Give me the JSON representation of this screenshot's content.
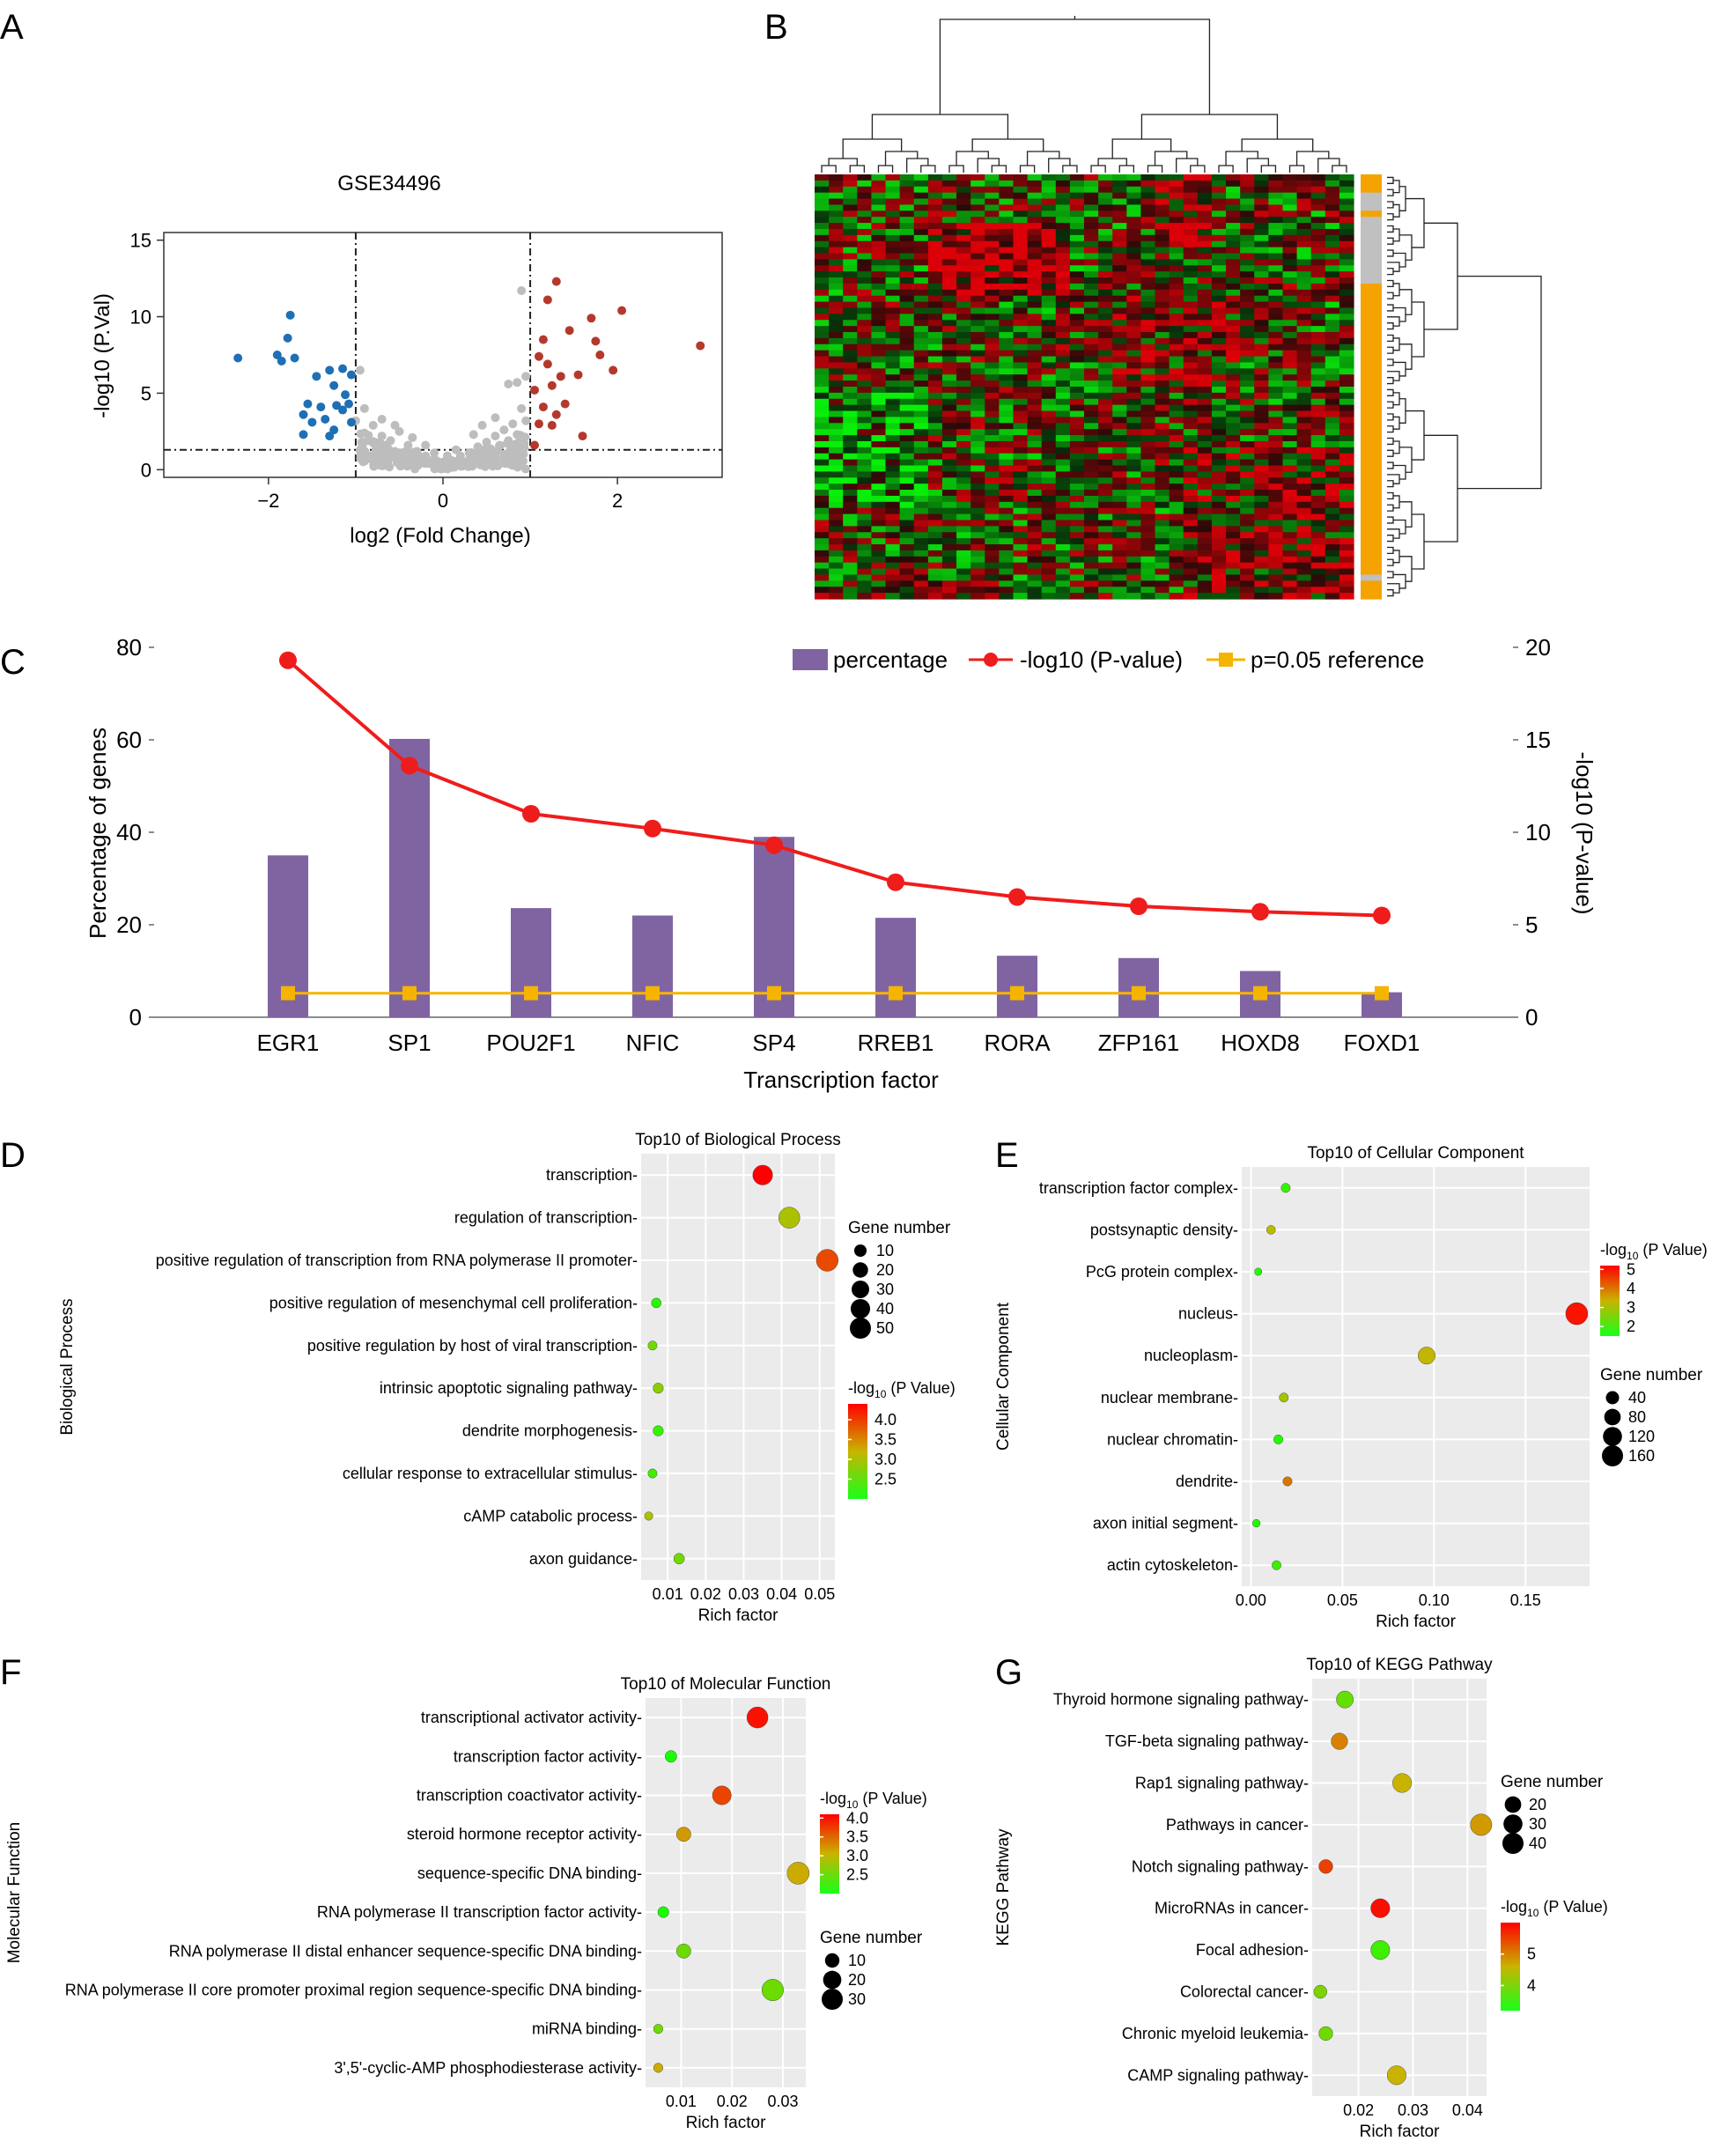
{
  "figure": {
    "panel_letters": [
      "A",
      "B",
      "C",
      "D",
      "E",
      "F",
      "G"
    ]
  },
  "colors": {
    "down": "#1f6fb4",
    "up": "#b4392c",
    "ns": "#bdbdbd",
    "bar": "#8064a2",
    "line": "#ef1c1c",
    "ref": "#f5b400",
    "grid_panel": "#ebebeb",
    "sample_bar_orange": "#f5a300",
    "sample_bar_gray": "#c0c0c0"
  },
  "chart_data": [
    {
      "panel": "A",
      "type": "scatter",
      "title": "GSE34496",
      "xlabel": "log2 (Fold Change)",
      "ylabel": "-log10 (P.Val)",
      "xlim": [
        -3.2,
        3.2
      ],
      "ylim": [
        -0.5,
        15.5
      ],
      "xticks": [
        -2,
        0,
        2
      ],
      "yticks": [
        0,
        5,
        10,
        15
      ],
      "vlines": [
        -1,
        1
      ],
      "hline": 1.3,
      "down": [
        [
          -2.35,
          7.3
        ],
        [
          -1.75,
          10.1
        ],
        [
          -1.78,
          8.6
        ],
        [
          -1.9,
          7.5
        ],
        [
          -1.85,
          7.1
        ],
        [
          -1.7,
          7.3
        ],
        [
          -1.45,
          6.1
        ],
        [
          -1.55,
          4.3
        ],
        [
          -1.4,
          4.1
        ],
        [
          -1.3,
          6.5
        ],
        [
          -1.25,
          5.5
        ],
        [
          -1.22,
          4.2
        ],
        [
          -1.6,
          3.6
        ],
        [
          -1.5,
          3.1
        ],
        [
          -1.35,
          3.3
        ],
        [
          -1.12,
          4.9
        ],
        [
          -1.08,
          4.3
        ],
        [
          -1.15,
          3.9
        ],
        [
          -1.05,
          3.1
        ],
        [
          -1.25,
          2.6
        ],
        [
          -1.3,
          2.2
        ],
        [
          -1.6,
          2.3
        ],
        [
          -1.15,
          6.6
        ],
        [
          -1.05,
          6.2
        ]
      ],
      "up": [
        [
          2.95,
          8.1
        ],
        [
          2.05,
          10.4
        ],
        [
          1.3,
          12.3
        ],
        [
          1.2,
          11.1
        ],
        [
          1.7,
          9.9
        ],
        [
          1.15,
          8.5
        ],
        [
          1.45,
          9.1
        ],
        [
          1.75,
          8.4
        ],
        [
          1.1,
          7.4
        ],
        [
          1.35,
          6.1
        ],
        [
          1.55,
          6.2
        ],
        [
          1.25,
          5.5
        ],
        [
          1.05,
          5.2
        ],
        [
          1.95,
          6.5
        ],
        [
          1.4,
          4.3
        ],
        [
          1.15,
          4.1
        ],
        [
          1.1,
          3.0
        ],
        [
          1.3,
          3.6
        ],
        [
          1.25,
          2.9
        ],
        [
          1.05,
          1.6
        ],
        [
          1.6,
          2.2
        ],
        [
          1.2,
          6.9
        ],
        [
          1.8,
          7.5
        ]
      ],
      "ns": [
        [
          -1.0,
          3.2
        ],
        [
          -0.9,
          2.4
        ],
        [
          -0.95,
          6.5
        ],
        [
          -0.85,
          1.9
        ],
        [
          -0.8,
          2.9
        ],
        [
          -0.75,
          1.6
        ],
        [
          -0.7,
          2.2
        ],
        [
          -0.65,
          1.4
        ],
        [
          -0.6,
          1.9
        ],
        [
          -0.55,
          1.2
        ],
        [
          -0.5,
          2.5
        ],
        [
          -0.45,
          1.0
        ],
        [
          -0.4,
          1.6
        ],
        [
          -0.35,
          0.8
        ],
        [
          -0.3,
          1.2
        ],
        [
          -0.25,
          0.6
        ],
        [
          -0.2,
          0.9
        ],
        [
          -0.15,
          0.4
        ],
        [
          -0.1,
          0.7
        ],
        [
          -0.05,
          0.3
        ],
        [
          0.0,
          0.5
        ],
        [
          0.05,
          0.2
        ],
        [
          0.1,
          0.6
        ],
        [
          0.15,
          0.3
        ],
        [
          0.2,
          0.9
        ],
        [
          0.25,
          0.5
        ],
        [
          0.3,
          1.1
        ],
        [
          0.35,
          0.7
        ],
        [
          0.4,
          1.5
        ],
        [
          0.45,
          0.9
        ],
        [
          0.5,
          1.8
        ],
        [
          0.55,
          1.2
        ],
        [
          0.6,
          2.2
        ],
        [
          0.65,
          1.6
        ],
        [
          0.7,
          2.6
        ],
        [
          0.75,
          1.9
        ],
        [
          0.8,
          3.0
        ],
        [
          0.85,
          2.3
        ],
        [
          0.9,
          4.0
        ],
        [
          0.95,
          3.2
        ],
        [
          0.85,
          5.7
        ],
        [
          0.9,
          11.7
        ],
        [
          0.95,
          6.1
        ],
        [
          -0.9,
          4.0
        ],
        [
          -0.7,
          3.3
        ],
        [
          -0.55,
          2.9
        ],
        [
          -0.35,
          2.1
        ],
        [
          0.35,
          2.3
        ],
        [
          0.6,
          3.4
        ],
        [
          0.75,
          5.6
        ],
        [
          0.45,
          2.9
        ],
        [
          -0.2,
          1.6
        ],
        [
          0.15,
          1.3
        ],
        [
          -0.6,
          1.0
        ],
        [
          0.6,
          0.9
        ],
        [
          -0.1,
          1.1
        ],
        [
          0.05,
          0.9
        ]
      ]
    },
    {
      "panel": "B",
      "type": "heatmap",
      "rows": 70,
      "cols": 38,
      "note": "clustered expression heatmap, red=high, green=low; sample annotation bar orange/gray"
    },
    {
      "panel": "C",
      "type": "bar",
      "xlabel": "Transcription factor",
      "ylabel": "Percentage of genes",
      "y2label": "-log10 (P-value)",
      "categories": [
        "EGR1",
        "SP1",
        "POU2F1",
        "NFIC",
        "SP4",
        "RREB1",
        "RORA",
        "ZFP161",
        "HOXD8",
        "FOXD1"
      ],
      "ylim": [
        0,
        80
      ],
      "yticks": [
        0,
        20,
        40,
        60,
        80
      ],
      "y2lim": [
        0,
        20
      ],
      "y2ticks": [
        0,
        5,
        10,
        15,
        20
      ],
      "series": [
        {
          "name": "percentage",
          "kind": "bar",
          "values": [
            35,
            60.2,
            23.6,
            22,
            39,
            21.5,
            13.3,
            12.8,
            10,
            5.4
          ]
        },
        {
          "name": "-log10 (P-value)",
          "kind": "line",
          "axis": "right",
          "values": [
            19.3,
            13.6,
            11,
            10.2,
            9.3,
            7.3,
            6.5,
            6,
            5.7,
            5.5
          ]
        },
        {
          "name": "p=0.05 reference",
          "kind": "line",
          "axis": "right",
          "values": [
            1.3,
            1.3,
            1.3,
            1.3,
            1.3,
            1.3,
            1.3,
            1.3,
            1.3,
            1.3
          ]
        }
      ],
      "legend_position": "top-right"
    },
    {
      "panel": "D",
      "type": "scatter",
      "title": "Top10 of Biological Process",
      "xlabel": "Rich factor",
      "ylabel": "Biological Process",
      "xlim": [
        0.003,
        0.054
      ],
      "xticks": [
        0.01,
        0.02,
        0.03,
        0.04,
        0.05
      ],
      "xtick_labels": [
        "0.01",
        "0.02",
        "0.03",
        "0.04",
        "0.05"
      ],
      "terms": [
        "transcription",
        "regulation of transcription",
        "positive regulation of transcription from RNA polymerase II promoter",
        "positive regulation of mesenchymal cell proliferation",
        "positive regulation by host of viral transcription",
        "intrinsic apoptotic signaling pathway",
        "dendrite morphogenesis",
        "cellular response to extracellular stimulus",
        "cAMP catabolic process",
        "axon guidance"
      ],
      "rich": [
        0.035,
        0.042,
        0.052,
        0.007,
        0.006,
        0.0075,
        0.0075,
        0.006,
        0.005,
        0.013
      ],
      "count": [
        42,
        50,
        55,
        4,
        3,
        5,
        5,
        3,
        2,
        6
      ],
      "pval": [
        4.4,
        3.0,
        3.9,
        2.1,
        2.6,
        2.8,
        2.2,
        2.3,
        3.0,
        2.6
      ],
      "size_legend": {
        "title": "Gene number",
        "values": [
          10,
          20,
          30,
          40,
          50
        ]
      },
      "color_legend": {
        "title_pre": "-log",
        "title_sub": "10",
        "title_post": " (P Value)",
        "min": 2.0,
        "max": 4.4,
        "ticks": [
          2.5,
          3.0,
          3.5,
          4.0
        ],
        "tick_labels": [
          "2.5",
          "3.0",
          "3.5",
          "4.0"
        ]
      },
      "legend_order": "size-first"
    },
    {
      "panel": "E",
      "type": "scatter",
      "title": "Top10 of Cellular Component",
      "xlabel": "Rich factor",
      "ylabel": "Cellular Component",
      "xlim": [
        -0.005,
        0.185
      ],
      "xticks": [
        0,
        0.05,
        0.1,
        0.15
      ],
      "xtick_labels": [
        "0.00",
        "0.05",
        "0.10",
        "0.15"
      ],
      "terms": [
        "transcription factor complex",
        "postsynaptic density",
        "PcG protein complex",
        "nucleus",
        "nucleoplasm",
        "nuclear membrane",
        "nuclear chromatin",
        "dendrite",
        "axon initial segment",
        "actin cytoskeleton"
      ],
      "rich": [
        0.019,
        0.011,
        0.004,
        0.178,
        0.096,
        0.018,
        0.015,
        0.02,
        0.003,
        0.014
      ],
      "count": [
        10,
        8,
        3,
        180,
        90,
        10,
        10,
        10,
        4,
        10
      ],
      "pval": [
        1.8,
        3.2,
        1.6,
        5.0,
        3.3,
        3.0,
        1.6,
        4.0,
        1.6,
        1.9
      ],
      "size_legend": {
        "title": "Gene number",
        "values": [
          40,
          80,
          120,
          160
        ]
      },
      "color_legend": {
        "title_pre": "-log",
        "title_sub": "10",
        "title_post": " (P Value)",
        "min": 1.5,
        "max": 5.2,
        "ticks": [
          2,
          3,
          4,
          5
        ],
        "tick_labels": [
          "2",
          "3",
          "4",
          "5"
        ]
      },
      "legend_order": "color-first"
    },
    {
      "panel": "F",
      "type": "scatter",
      "title": "Top10 of Molecular Function",
      "xlabel": "Rich factor",
      "ylabel": "Molecular Function",
      "xlim": [
        0.003,
        0.0345
      ],
      "xticks": [
        0.01,
        0.02,
        0.03
      ],
      "xtick_labels": [
        "0.01",
        "0.02",
        "0.03"
      ],
      "terms": [
        "transcriptional activator activity",
        "transcription factor activity",
        "transcription coactivator activity",
        "steroid hormone receptor activity",
        "sequence-specific DNA binding",
        "RNA polymerase II transcription factor activity",
        "RNA polymerase II distal enhancer sequence-specific DNA binding",
        "RNA polymerase II core promoter proximal region sequence-specific DNA binding",
        "miRNA binding",
        "3',5'-cyclic-AMP phosphodiesterase activity"
      ],
      "rich": [
        0.025,
        0.008,
        0.018,
        0.0105,
        0.033,
        0.0065,
        0.0105,
        0.028,
        0.0055,
        0.0055
      ],
      "count": [
        30,
        5,
        22,
        10,
        34,
        4,
        10,
        32,
        2,
        2
      ],
      "pval": [
        4.0,
        2.0,
        3.7,
        3.2,
        3.1,
        2.0,
        2.5,
        2.5,
        2.5,
        3.1
      ],
      "size_legend": {
        "title": "Gene number",
        "values": [
          10,
          20,
          30
        ]
      },
      "color_legend": {
        "title_pre": "-log",
        "title_sub": "10",
        "title_post": " (P Value)",
        "min": 2.0,
        "max": 4.1,
        "ticks": [
          2.5,
          3.0,
          3.5,
          4.0
        ],
        "tick_labels": [
          "2.5",
          "3.0",
          "3.5",
          "4.0"
        ]
      },
      "legend_order": "color-first"
    },
    {
      "panel": "G",
      "type": "scatter",
      "title": "Top10 of KEGG Pathway",
      "xlabel": "Rich factor",
      "ylabel": "KEGG Pathway",
      "xlim": [
        0.0115,
        0.0435
      ],
      "xticks": [
        0.02,
        0.03,
        0.04
      ],
      "xtick_labels": [
        "0.02",
        "0.03",
        "0.04"
      ],
      "terms": [
        "Thyroid hormone signaling pathway",
        "TGF-beta signaling pathway",
        "Rap1 signaling pathway",
        "Pathways in cancer",
        "Notch signaling pathway",
        "MicroRNAs in cancer",
        "Focal adhesion",
        "Colorectal cancer",
        "Chronic myeloid leukemia",
        "CAMP signaling pathway"
      ],
      "rich": [
        0.0175,
        0.0165,
        0.028,
        0.0425,
        0.014,
        0.024,
        0.024,
        0.013,
        0.014,
        0.027
      ],
      "count": [
        22,
        20,
        30,
        42,
        12,
        30,
        30,
        10,
        12,
        30
      ],
      "pval": [
        3.8,
        5.0,
        4.6,
        4.8,
        5.5,
        5.9,
        3.5,
        4.0,
        3.9,
        4.6
      ],
      "size_legend": {
        "title": "Gene number",
        "values": [
          20,
          30,
          40
        ]
      },
      "color_legend": {
        "title_pre": "-log",
        "title_sub": "10",
        "title_post": " (P Value)",
        "min": 3.2,
        "max": 6.0,
        "ticks": [
          4,
          5
        ],
        "tick_labels": [
          "4",
          "5"
        ]
      },
      "legend_order": "size-first"
    }
  ]
}
